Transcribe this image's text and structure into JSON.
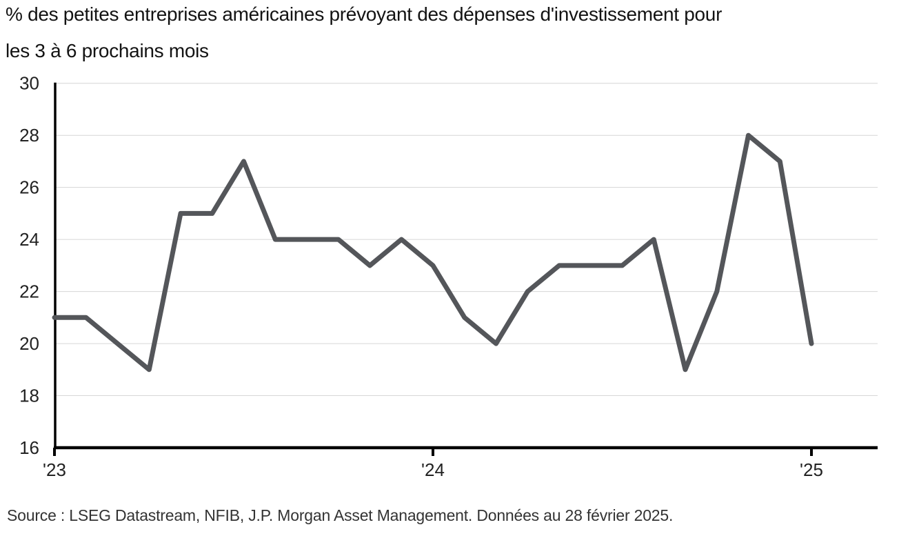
{
  "title": {
    "line1": "% des petites entreprises américaines prévoyant des dépenses d'investissement pour",
    "line2": "les 3 à 6 prochains mois"
  },
  "source": "Source : LSEG Datastream, NFIB, J.P. Morgan Asset Management. Données au 28 février 2025.",
  "chart_data": {
    "type": "line",
    "title": "% des petites entreprises américaines prévoyant des dépenses d'investissement pour les 3 à 6 prochains mois",
    "frequency": "monthly",
    "values": [
      21,
      21,
      20,
      19,
      25,
      25,
      27,
      24,
      24,
      24,
      23,
      24,
      23,
      21,
      20,
      22,
      23,
      23,
      23,
      24,
      19,
      22,
      28,
      27,
      20
    ],
    "x_tick_labels": [
      "'23",
      "'24",
      "'25"
    ],
    "x_tick_indices": [
      0,
      12,
      24
    ],
    "y_ticks": [
      16,
      18,
      20,
      22,
      24,
      26,
      28,
      30
    ],
    "ylim": [
      16,
      30
    ],
    "grid": "horizontal-only",
    "legend": "none",
    "colors": {
      "line": "#54565a",
      "axis": "#000000",
      "gridline": "#d6d6d6",
      "title_text": "#131313",
      "tick_text": "#222222",
      "source_text": "#333333"
    }
  }
}
